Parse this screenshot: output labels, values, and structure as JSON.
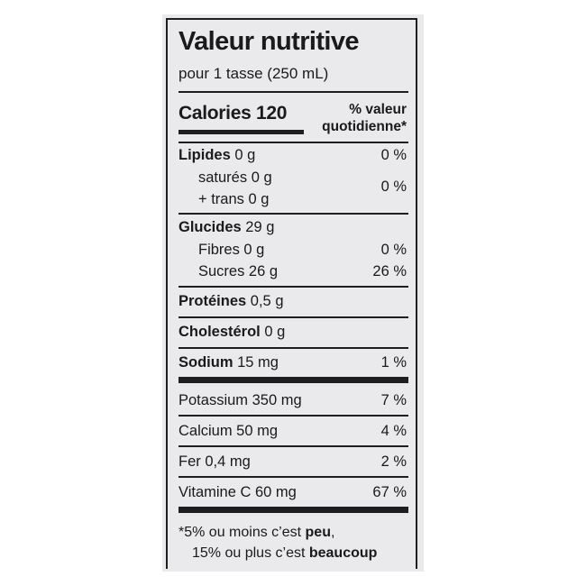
{
  "title": "Valeur nutritive",
  "serving": "pour 1 tasse (250 mL)",
  "calories_label": "Calories",
  "calories_value": "120",
  "dv_header_line1": "% valeur",
  "dv_header_line2": "quotidienne*",
  "rows": {
    "lipides": {
      "label": "Lipides",
      "amount": "0 g",
      "dv": "0 %"
    },
    "satures": {
      "label": "saturés 0 g"
    },
    "trans": {
      "label": "+ trans 0 g",
      "dv": "0 %"
    },
    "glucides": {
      "label": "Glucides",
      "amount": "29 g"
    },
    "fibres": {
      "label": "Fibres 0 g",
      "dv": "0 %"
    },
    "sucres": {
      "label": "Sucres 26 g",
      "dv": "26 %"
    },
    "proteines": {
      "label": "Protéines",
      "amount": "0,5 g"
    },
    "cholesterol": {
      "label": "Cholestérol",
      "amount": "0 g"
    },
    "sodium": {
      "label": "Sodium",
      "amount": "15 mg",
      "dv": "1 %"
    },
    "potassium": {
      "label": "Potassium 350 mg",
      "dv": "7 %"
    },
    "calcium": {
      "label": "Calcium 50 mg",
      "dv": "4 %"
    },
    "fer": {
      "label": "Fer 0,4 mg",
      "dv": "2 %"
    },
    "vitamine_c": {
      "label": "Vitamine C 60 mg",
      "dv": "67 %"
    }
  },
  "footnote": {
    "line1_prefix": "*5% ou moins c’est",
    "line1_bold": "peu",
    "line1_suffix": ",",
    "line2_prefix": "15% ou plus c’est",
    "line2_bold": "beaucoup"
  },
  "colors": {
    "ink": "#1e1e1e",
    "card_background": "#eaeaec",
    "page_background": "#ffffff"
  }
}
